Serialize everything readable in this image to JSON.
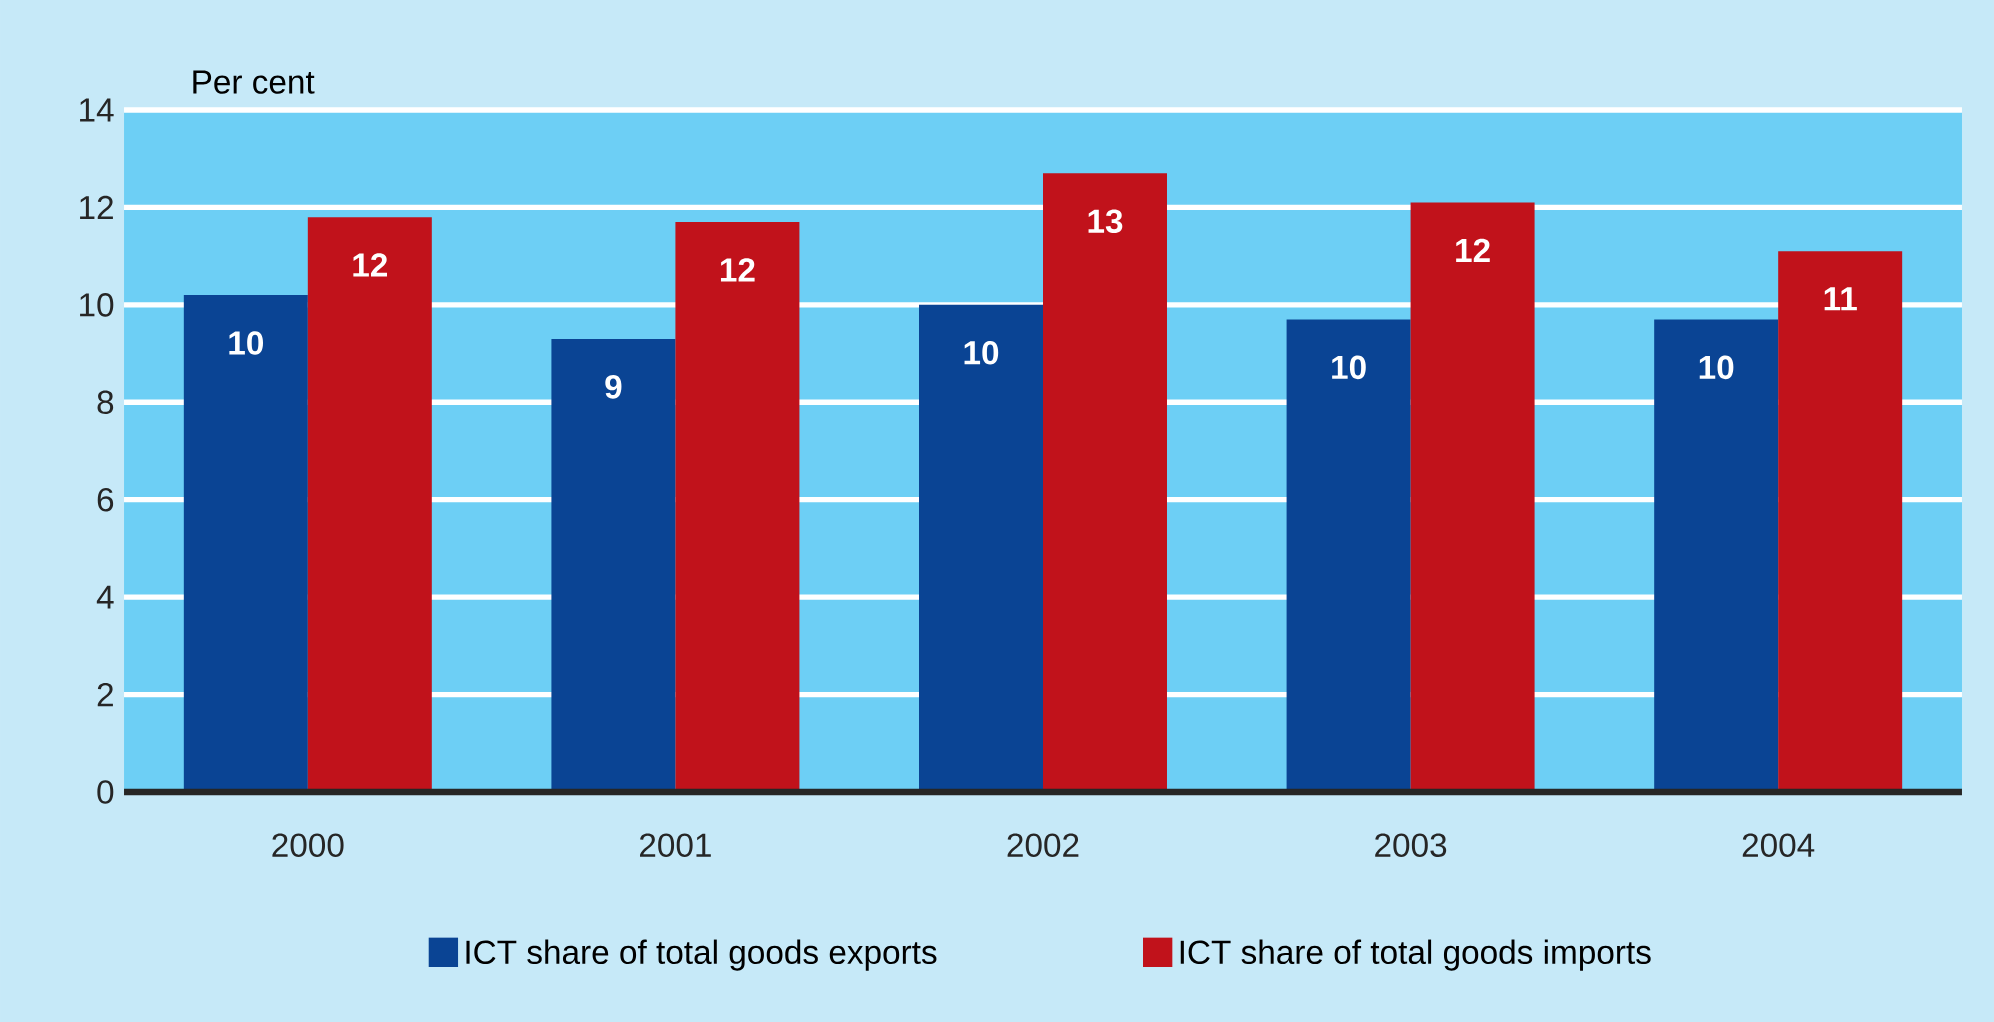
{
  "chart_data": {
    "type": "bar",
    "ylabel": "Per cent",
    "categories": [
      "2000",
      "2001",
      "2002",
      "2003",
      "2004"
    ],
    "series": [
      {
        "name": "ICT share of total goods exports",
        "color": "#0a4494",
        "values": [
          10.2,
          9.3,
          10.0,
          9.7,
          9.7
        ],
        "value_labels": [
          "10",
          "9",
          "10",
          "10",
          "10"
        ]
      },
      {
        "name": "ICT share of total goods imports",
        "color": "#c1121b",
        "values": [
          11.8,
          11.7,
          12.7,
          12.1,
          11.1
        ],
        "value_labels": [
          "12",
          "12",
          "13",
          "12",
          "11"
        ]
      }
    ],
    "ylim": [
      0,
      14
    ],
    "yticks": [
      0,
      2,
      4,
      6,
      8,
      10,
      12,
      14
    ],
    "grid": "y",
    "legend": "bottom"
  }
}
